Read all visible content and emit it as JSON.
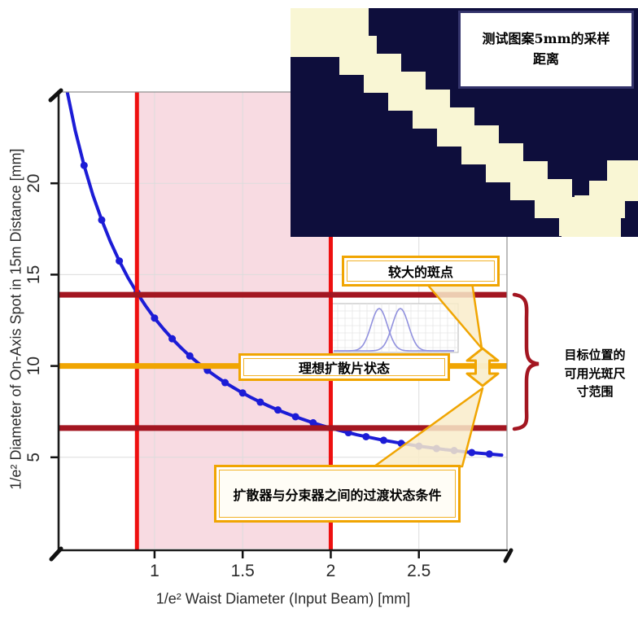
{
  "chart_data": {
    "type": "line",
    "xlabel": "1/e² Waist Diameter (Input Beam) [mm]",
    "ylabel": "1/e² Diameter of On-Axis Spot in 15m Distance [mm]",
    "xlim": [
      0.46,
      3.0
    ],
    "ylim": [
      0,
      25
    ],
    "x_ticks": [
      1,
      1.5,
      2,
      2.5
    ],
    "x_tick_labels": [
      "1",
      "1.5",
      "2",
      "2.5"
    ],
    "y_ticks": [
      5,
      10,
      15,
      20
    ],
    "y_tick_labels": [
      "5",
      "10",
      "15",
      "20"
    ],
    "grid": true,
    "series": [
      {
        "color": "#1c1cd6",
        "points": [
          [
            0.49,
            25.68
          ],
          [
            0.55,
            22.88
          ],
          [
            0.6,
            20.98
          ],
          [
            0.65,
            19.36
          ],
          [
            0.7,
            17.99
          ],
          [
            0.75,
            16.79
          ],
          [
            0.8,
            15.75
          ],
          [
            0.85,
            14.82
          ],
          [
            0.9,
            14.01
          ],
          [
            0.95,
            13.28
          ],
          [
            1.0,
            12.62
          ],
          [
            1.05,
            12.03
          ],
          [
            1.1,
            11.49
          ],
          [
            1.15,
            11.0
          ],
          [
            1.2,
            10.55
          ],
          [
            1.25,
            10.14
          ],
          [
            1.3,
            9.76
          ],
          [
            1.35,
            9.42
          ],
          [
            1.4,
            9.09
          ],
          [
            1.45,
            8.8
          ],
          [
            1.5,
            8.52
          ],
          [
            1.55,
            8.26
          ],
          [
            1.6,
            8.02
          ],
          [
            1.65,
            7.8
          ],
          [
            1.7,
            7.59
          ],
          [
            1.75,
            7.4
          ],
          [
            1.8,
            7.22
          ],
          [
            1.85,
            7.05
          ],
          [
            1.9,
            6.89
          ],
          [
            1.95,
            6.74
          ],
          [
            2.0,
            6.6
          ],
          [
            2.05,
            6.47
          ],
          [
            2.1,
            6.35
          ],
          [
            2.15,
            6.23
          ],
          [
            2.2,
            6.13
          ],
          [
            2.25,
            6.03
          ],
          [
            2.3,
            5.93
          ],
          [
            2.35,
            5.85
          ],
          [
            2.4,
            5.76
          ],
          [
            2.45,
            5.69
          ],
          [
            2.5,
            5.61
          ],
          [
            2.55,
            5.55
          ],
          [
            2.6,
            5.48
          ],
          [
            2.65,
            5.42
          ],
          [
            2.7,
            5.37
          ],
          [
            2.75,
            5.31
          ],
          [
            2.8,
            5.26
          ],
          [
            2.85,
            5.22
          ],
          [
            2.9,
            5.18
          ],
          [
            2.95,
            5.14
          ],
          [
            2.97,
            5.12
          ]
        ],
        "markers": [
          [
            0.6,
            20.98
          ],
          [
            0.7,
            17.99
          ],
          [
            0.8,
            15.75
          ],
          [
            0.9,
            14.01
          ],
          [
            1.0,
            12.62
          ],
          [
            1.1,
            11.49
          ],
          [
            1.2,
            10.55
          ],
          [
            1.3,
            9.76
          ],
          [
            1.4,
            9.09
          ],
          [
            1.5,
            8.52
          ],
          [
            1.6,
            8.02
          ],
          [
            1.7,
            7.59
          ],
          [
            1.8,
            7.22
          ],
          [
            1.9,
            6.89
          ],
          [
            2.0,
            6.6
          ],
          [
            2.1,
            6.35
          ],
          [
            2.2,
            6.13
          ],
          [
            2.3,
            5.93
          ],
          [
            2.4,
            5.76
          ],
          [
            2.5,
            5.61
          ],
          [
            2.6,
            5.48
          ],
          [
            2.7,
            5.37
          ],
          [
            2.8,
            5.26
          ],
          [
            2.9,
            5.18
          ]
        ]
      }
    ],
    "guides": {
      "band": {
        "x1": 0.9,
        "x2": 2.0,
        "color": "#f8dbe2"
      },
      "vlines": [
        {
          "x": 0.9,
          "color": "#ee1010",
          "width": 5
        },
        {
          "x": 2.0,
          "color": "#ee1010",
          "width": 5
        }
      ],
      "hlines": [
        {
          "y": 13.9,
          "color": "#a31621",
          "width": 7
        },
        {
          "y": 10.0,
          "color": "#f0a502",
          "width": 7
        },
        {
          "y": 6.6,
          "color": "#a31621",
          "width": 7
        }
      ]
    }
  },
  "annotations": {
    "larger_spot": "较大的斑点",
    "ideal_diffuser": "理想扩散片状态",
    "transition": "扩散器与分束器之间的过渡状态条件",
    "brace_label": "目标位置的\n可用光斑尺\n寸范围"
  },
  "inset": {
    "caption": "测试图案5mm的采样\n距离",
    "colors": {
      "background": "#0e0e3c",
      "stripe": "#f9f6d4"
    }
  }
}
